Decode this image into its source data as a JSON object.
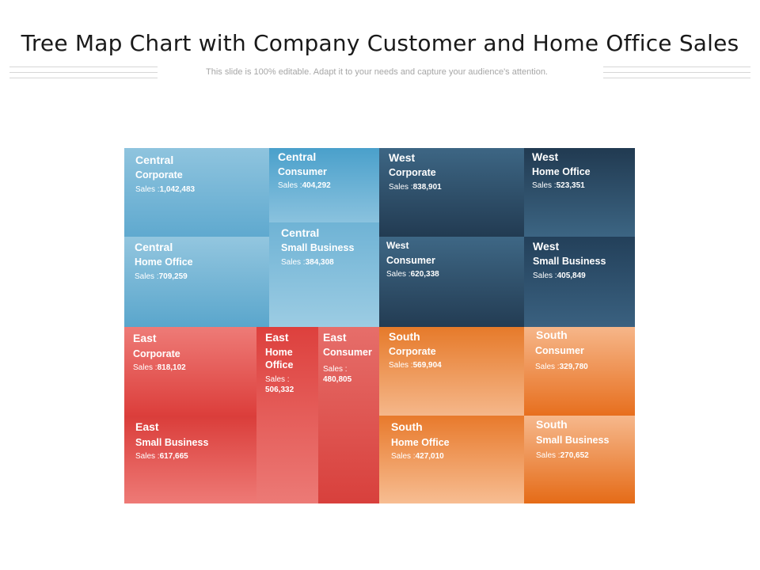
{
  "slide": {
    "title": "Tree Map Chart with Company Customer and Home Office Sales",
    "subtitle": "This slide is 100% editable. Adapt it to your needs and capture your audience's attention."
  },
  "chart_data": {
    "type": "treemap",
    "sales_prefix": "Sales :",
    "colors": {
      "Central": "#6fb3d5",
      "West": "#2f506c",
      "East": "#e45652",
      "South": "#ee9550"
    },
    "cells": [
      {
        "region": "Central",
        "segment": "Corporate",
        "value": 1042483,
        "value_label": "1,042,483"
      },
      {
        "region": "Central",
        "segment": "Consumer",
        "value": 404292,
        "value_label": "404,292"
      },
      {
        "region": "Central",
        "segment": "Home Office",
        "value": 709259,
        "value_label": "709,259"
      },
      {
        "region": "Central",
        "segment": "Small Business",
        "value": 384308,
        "value_label": "384,308"
      },
      {
        "region": "West",
        "segment": "Corporate",
        "value": 838901,
        "value_label": "838,901"
      },
      {
        "region": "West",
        "segment": "Home Office",
        "value": 523351,
        "value_label": "523,351"
      },
      {
        "region": "West",
        "segment": "Consumer",
        "value": 620338,
        "value_label": "620,338"
      },
      {
        "region": "West",
        "segment": "Small Business",
        "value": 405849,
        "value_label": "405,849"
      },
      {
        "region": "East",
        "segment": "Corporate",
        "value": 818102,
        "value_label": "818,102"
      },
      {
        "region": "East",
        "segment": "Small Business",
        "value": 617665,
        "value_label": "617,665"
      },
      {
        "region": "East",
        "segment": "Home Office",
        "value": 506332,
        "value_label": "506,332"
      },
      {
        "region": "East",
        "segment": "Consumer",
        "value": 480805,
        "value_label": "480,805"
      },
      {
        "region": "South",
        "segment": "Corporate",
        "value": 569904,
        "value_label": "569,904"
      },
      {
        "region": "South",
        "segment": "Home Office",
        "value": 427010,
        "value_label": "427,010"
      },
      {
        "region": "South",
        "segment": "Consumer",
        "value": 329780,
        "value_label": "329,780"
      },
      {
        "region": "South",
        "segment": "Small Business",
        "value": 270652,
        "value_label": "270,652"
      }
    ]
  }
}
